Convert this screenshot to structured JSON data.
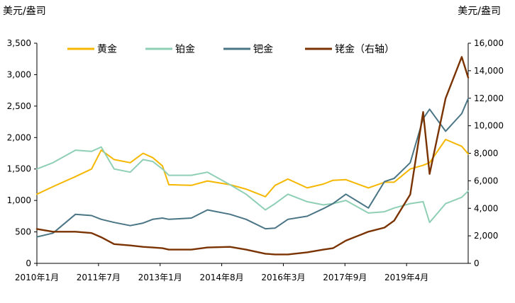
{
  "chart_data": {
    "type": "line",
    "left_unit": "美元/盎司",
    "right_unit": "美元/盎司",
    "x_ticks": [
      "2010年1月",
      "2011年7月",
      "2013年1月",
      "2014年8月",
      "2016年3月",
      "2017年9月",
      "2019年4月"
    ],
    "x_range": [
      "2010-01",
      "2021-03"
    ],
    "y_left": {
      "min": 0,
      "max": 3500,
      "ticks": [
        "0",
        "500",
        "1,000",
        "1,500",
        "2,000",
        "2,500",
        "3,000",
        "3,500"
      ]
    },
    "y_right": {
      "min": 0,
      "max": 16000,
      "ticks": [
        "0",
        "2,000",
        "4,000",
        "6,000",
        "8,000",
        "10,000",
        "12,000",
        "14,000",
        "16,000"
      ]
    },
    "legend_position": "top",
    "grid": false,
    "series": [
      {
        "name": "黄金",
        "axis": "left",
        "color": "#F5B700",
        "x": [
          "2010-01",
          "2010-06",
          "2011-01",
          "2011-06",
          "2011-09",
          "2012-01",
          "2012-06",
          "2012-10",
          "2013-01",
          "2013-04",
          "2013-06",
          "2014-01",
          "2014-06",
          "2015-01",
          "2015-06",
          "2015-12",
          "2016-03",
          "2016-07",
          "2017-01",
          "2017-06",
          "2017-09",
          "2018-01",
          "2018-08",
          "2019-01",
          "2019-04",
          "2019-09",
          "2020-01",
          "2020-03",
          "2020-08",
          "2021-01",
          "2021-03"
        ],
        "y": [
          1100,
          1220,
          1380,
          1500,
          1800,
          1650,
          1600,
          1750,
          1680,
          1550,
          1250,
          1240,
          1310,
          1250,
          1180,
          1060,
          1240,
          1340,
          1200,
          1260,
          1320,
          1330,
          1200,
          1290,
          1290,
          1500,
          1560,
          1600,
          1970,
          1860,
          1740
        ]
      },
      {
        "name": "铂金",
        "axis": "left",
        "color": "#8FCFB6",
        "x": [
          "2010-01",
          "2010-06",
          "2011-01",
          "2011-06",
          "2011-09",
          "2012-01",
          "2012-06",
          "2012-10",
          "2013-01",
          "2013-04",
          "2013-06",
          "2014-01",
          "2014-06",
          "2015-01",
          "2015-06",
          "2015-12",
          "2016-03",
          "2016-07",
          "2017-01",
          "2017-06",
          "2017-09",
          "2018-01",
          "2018-08",
          "2019-01",
          "2019-04",
          "2019-09",
          "2020-01",
          "2020-03",
          "2020-08",
          "2021-01",
          "2021-03"
        ],
        "y": [
          1500,
          1600,
          1800,
          1780,
          1850,
          1500,
          1450,
          1650,
          1620,
          1500,
          1400,
          1400,
          1450,
          1250,
          1100,
          850,
          950,
          1100,
          980,
          930,
          950,
          1000,
          800,
          820,
          880,
          950,
          980,
          650,
          950,
          1050,
          1150
        ]
      },
      {
        "name": "钯金",
        "axis": "left",
        "color": "#4A7585",
        "x": [
          "2010-01",
          "2010-06",
          "2011-01",
          "2011-06",
          "2011-09",
          "2012-01",
          "2012-06",
          "2012-10",
          "2013-01",
          "2013-04",
          "2013-06",
          "2014-01",
          "2014-06",
          "2015-01",
          "2015-06",
          "2015-12",
          "2016-03",
          "2016-07",
          "2017-01",
          "2017-06",
          "2017-09",
          "2018-01",
          "2018-08",
          "2019-01",
          "2019-04",
          "2019-09",
          "2020-01",
          "2020-03",
          "2020-08",
          "2021-01",
          "2021-03"
        ],
        "y": [
          420,
          480,
          780,
          760,
          700,
          650,
          600,
          640,
          700,
          720,
          700,
          720,
          850,
          780,
          700,
          550,
          560,
          700,
          750,
          870,
          950,
          1100,
          880,
          1300,
          1350,
          1600,
          2300,
          2450,
          2100,
          2380,
          2620
        ]
      },
      {
        "name": "铑金（右轴）",
        "axis": "right",
        "color": "#7A3300",
        "x": [
          "2010-01",
          "2010-06",
          "2011-01",
          "2011-06",
          "2011-09",
          "2012-01",
          "2012-06",
          "2012-10",
          "2013-01",
          "2013-04",
          "2013-06",
          "2014-01",
          "2014-06",
          "2015-01",
          "2015-06",
          "2015-12",
          "2016-03",
          "2016-07",
          "2017-01",
          "2017-06",
          "2017-09",
          "2018-01",
          "2018-08",
          "2019-01",
          "2019-04",
          "2019-09",
          "2020-01",
          "2020-03",
          "2020-08",
          "2021-01",
          "2021-03"
        ],
        "y": [
          2500,
          2300,
          2300,
          2200,
          1900,
          1400,
          1300,
          1200,
          1150,
          1100,
          1000,
          1000,
          1150,
          1200,
          1000,
          700,
          650,
          650,
          800,
          1000,
          1100,
          1650,
          2300,
          2600,
          3100,
          5000,
          11000,
          6500,
          12000,
          15000,
          13500
        ]
      }
    ]
  }
}
